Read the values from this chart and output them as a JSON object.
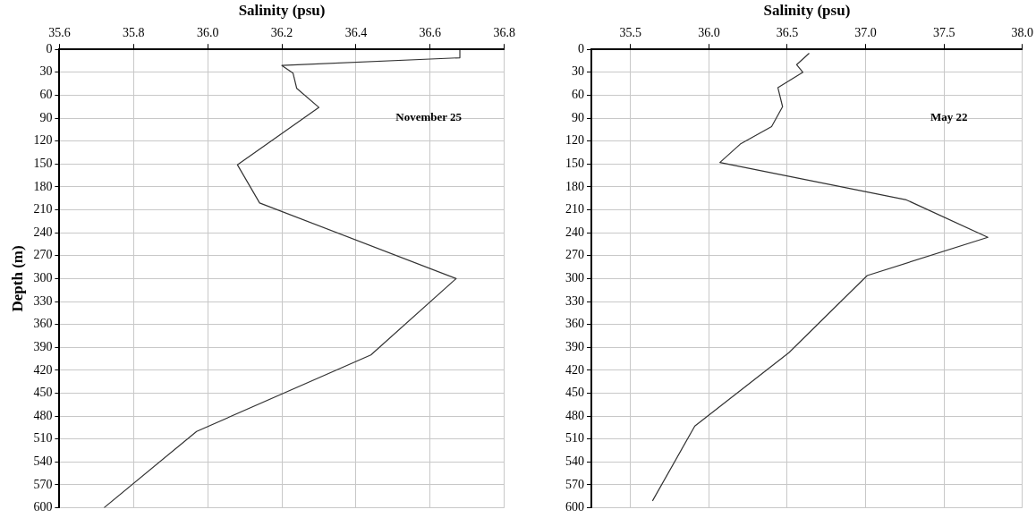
{
  "chart_data": [
    {
      "type": "line",
      "xlabel": "Salinity (psu)",
      "ylabel": "Depth (m)",
      "annotations": [
        "November 25"
      ],
      "xlim": [
        35.6,
        36.8
      ],
      "xticks": [
        35.6,
        35.8,
        {
          "value": 36,
          "label": "36.0"
        },
        36.2,
        36.4,
        36.6,
        36.8
      ],
      "ylim": [
        600,
        0
      ],
      "yticks": [
        0,
        30,
        60,
        90,
        120,
        150,
        180,
        210,
        240,
        270,
        300,
        330,
        360,
        390,
        420,
        450,
        480,
        510,
        540,
        570,
        600
      ],
      "grid": true,
      "legend": false,
      "marker": "none",
      "line_style": "solid",
      "series": [
        {
          "color": "#333333",
          "x": [
            36.68,
            36.68,
            36.2,
            36.23,
            36.24,
            36.3,
            36.08,
            36.14,
            36.67,
            36.44,
            35.97,
            35.72
          ],
          "values": [
            1,
            11,
            21,
            31,
            51,
            76,
            151,
            201,
            300,
            400,
            500,
            600
          ]
        }
      ]
    },
    {
      "type": "line",
      "xlabel": "Salinity (psu)",
      "annotations": [
        "May 22"
      ],
      "xlim": [
        35.25,
        38.0
      ],
      "xticks": [
        35.5,
        {
          "value": 36,
          "label": "36.0"
        },
        36.5,
        {
          "value": 37,
          "label": "37.0"
        },
        37.5,
        {
          "value": 38,
          "label": "38.0"
        }
      ],
      "ylim": [
        600,
        0
      ],
      "yticks": [
        0,
        30,
        60,
        90,
        120,
        150,
        180,
        210,
        240,
        270,
        300,
        330,
        360,
        390,
        420,
        450,
        480,
        510,
        540,
        570,
        600
      ],
      "grid": true,
      "legend": false,
      "marker": "none",
      "line_style": "solid",
      "series": [
        {
          "color": "#333333",
          "x": [
            36.64,
            36.56,
            36.6,
            36.44,
            36.47,
            36.4,
            36.2,
            36.07,
            37.26,
            37.78,
            37.01,
            36.51,
            35.91,
            35.64
          ],
          "values": [
            5,
            20,
            30,
            50,
            75,
            101,
            124,
            148,
            197,
            246,
            296,
            397,
            493,
            591
          ]
        }
      ]
    }
  ]
}
